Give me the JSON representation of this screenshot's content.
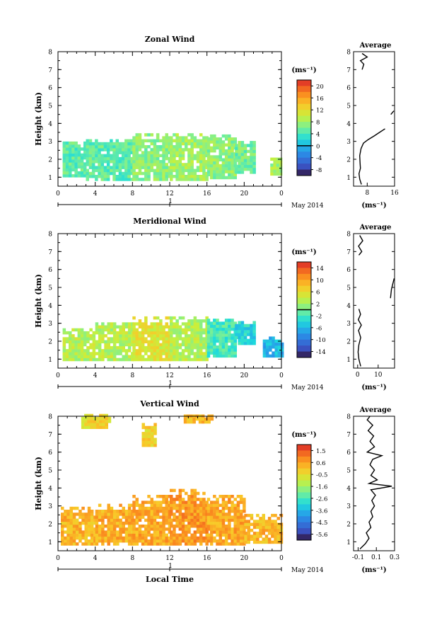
{
  "chart_data": [
    {
      "type": "heatmap",
      "title": "Zonal Wind",
      "xlabel": "",
      "ylabel": "Height (km)",
      "x_ticks": [
        "0",
        "4",
        "8",
        "12",
        "16",
        "20",
        "0"
      ],
      "y_ticks": [
        "1",
        "2",
        "3",
        "4",
        "5",
        "6",
        "7",
        "8"
      ],
      "xlim": [
        0,
        24
      ],
      "ylim": [
        0.5,
        8.0
      ],
      "date_axis": {
        "day_label": "1",
        "month_label": "May 2014"
      },
      "colorbar": {
        "unit": "(ms⁻¹)",
        "ticks": [
          "20",
          "16",
          "12",
          "8",
          "4",
          "0",
          "-4",
          "-8"
        ],
        "range": [
          -10,
          22
        ],
        "zero_line": 0
      },
      "data_regions": [
        {
          "t0": 0.5,
          "t1": 3,
          "h0": 1.0,
          "h1": 2.9,
          "v": 5
        },
        {
          "t0": 3,
          "t1": 8,
          "h0": 0.8,
          "h1": 3.1,
          "v": 5
        },
        {
          "t0": 8,
          "t1": 12,
          "h0": 0.8,
          "h1": 3.3,
          "v": 7
        },
        {
          "t0": 12,
          "t1": 16,
          "h0": 0.8,
          "h1": 3.4,
          "v": 8
        },
        {
          "t0": 16,
          "t1": 19,
          "h0": 0.9,
          "h1": 3.3,
          "v": 7
        },
        {
          "t0": 19,
          "t1": 21,
          "h0": 1.2,
          "h1": 2.9,
          "v": 6
        },
        {
          "t0": 22.8,
          "t1": 24,
          "h0": 1.1,
          "h1": 2.0,
          "v": 8
        }
      ],
      "average": {
        "title": "Average",
        "xlabel": "(ms⁻¹)",
        "x_ticks": [
          "8",
          "16"
        ],
        "xlim": [
          4,
          16
        ],
        "profile": [
          {
            "x": 6.3,
            "h": 0.6
          },
          {
            "x": 5.8,
            "h": 0.9
          },
          {
            "x": 5.6,
            "h": 1.2
          },
          {
            "x": 6.0,
            "h": 1.5
          },
          {
            "x": 5.9,
            "h": 1.8
          },
          {
            "x": 5.8,
            "h": 2.2
          },
          {
            "x": 6.2,
            "h": 2.6
          },
          {
            "x": 6.9,
            "h": 2.9
          },
          {
            "x": 8.3,
            "h": 3.1
          },
          {
            "x": 10.0,
            "h": 3.3
          },
          {
            "x": 11.6,
            "h": 3.5
          },
          {
            "x": 13.2,
            "h": 3.7
          }
        ],
        "profile_upper": [
          {
            "x": 15.8,
            "h": 4.7
          },
          {
            "x": 14.9,
            "h": 4.5
          }
        ],
        "profile_top": [
          {
            "x": 6.5,
            "h": 7.0
          },
          {
            "x": 7.0,
            "h": 7.3
          },
          {
            "x": 6.0,
            "h": 7.5
          },
          {
            "x": 8.0,
            "h": 7.7
          },
          {
            "x": 6.5,
            "h": 7.9
          }
        ]
      }
    },
    {
      "type": "heatmap",
      "title": "Meridional Wind",
      "xlabel": "",
      "ylabel": "Height (km)",
      "x_ticks": [
        "0",
        "4",
        "8",
        "12",
        "16",
        "20",
        "0"
      ],
      "y_ticks": [
        "1",
        "2",
        "3",
        "4",
        "5",
        "6",
        "7",
        "8"
      ],
      "xlim": [
        0,
        24
      ],
      "ylim": [
        0.5,
        8.0
      ],
      "date_axis": {
        "day_label": "1",
        "month_label": "May 2014"
      },
      "colorbar": {
        "unit": "(ms⁻¹)",
        "ticks": [
          "14",
          "10",
          "6",
          "2",
          "-2",
          "-6",
          "-10",
          "-14"
        ],
        "range": [
          -16,
          16
        ],
        "zero_line": 0
      },
      "data_regions": [
        {
          "t0": 0.5,
          "t1": 4,
          "h0": 0.9,
          "h1": 2.7,
          "v": 3
        },
        {
          "t0": 4,
          "t1": 8,
          "h0": 0.9,
          "h1": 3.0,
          "v": 3
        },
        {
          "t0": 8,
          "t1": 12,
          "h0": 0.9,
          "h1": 3.3,
          "v": 5
        },
        {
          "t0": 12,
          "t1": 16,
          "h0": 0.9,
          "h1": 3.3,
          "v": 3
        },
        {
          "t0": 16,
          "t1": 19,
          "h0": 1.1,
          "h1": 3.2,
          "v": -2
        },
        {
          "t0": 19,
          "t1": 21,
          "h0": 1.8,
          "h1": 3.0,
          "v": -4
        },
        {
          "t0": 22,
          "t1": 24,
          "h0": 1.1,
          "h1": 2.1,
          "v": -6
        }
      ],
      "average": {
        "title": "Average",
        "xlabel": "(ms⁻¹)",
        "x_ticks": [
          "0",
          "10"
        ],
        "xlim": [
          -2,
          18
        ],
        "profile": [
          {
            "x": 1.5,
            "h": 0.6
          },
          {
            "x": 0.6,
            "h": 1.0
          },
          {
            "x": 0.2,
            "h": 1.4
          },
          {
            "x": 0.6,
            "h": 1.8
          },
          {
            "x": 1.5,
            "h": 2.2
          },
          {
            "x": 0.4,
            "h": 2.6
          },
          {
            "x": 1.8,
            "h": 2.9
          },
          {
            "x": 0.3,
            "h": 3.2
          },
          {
            "x": 1.4,
            "h": 3.5
          },
          {
            "x": 0.6,
            "h": 3.8
          }
        ],
        "profile_upper": [
          {
            "x": 16.0,
            "h": 4.4
          },
          {
            "x": 16.5,
            "h": 4.9
          },
          {
            "x": 17.8,
            "h": 5.5
          }
        ],
        "profile_top": [
          {
            "x": 0.6,
            "h": 6.8
          },
          {
            "x": 2.0,
            "h": 7.0
          },
          {
            "x": 0.4,
            "h": 7.3
          },
          {
            "x": 2.5,
            "h": 7.6
          },
          {
            "x": 1.0,
            "h": 7.9
          }
        ]
      }
    },
    {
      "type": "heatmap",
      "title": "Vertical Wind",
      "xlabel": "Local Time",
      "ylabel": "Height (km)",
      "x_ticks": [
        "0",
        "4",
        "8",
        "12",
        "16",
        "20",
        "0"
      ],
      "y_ticks": [
        "1",
        "2",
        "3",
        "4",
        "5",
        "6",
        "7",
        "8"
      ],
      "xlim": [
        0,
        24
      ],
      "ylim": [
        0.5,
        8.0
      ],
      "date_axis": {
        "day_label": "1",
        "month_label": "May 2014"
      },
      "colorbar": {
        "unit": "(ms⁻¹)",
        "ticks": [
          "1.5",
          "0.6",
          "-0.5",
          "-1.6",
          "-2.6",
          "-3.6",
          "-4.5",
          "-5.6"
        ],
        "range": [
          -6,
          2
        ],
        "zero_line": null
      },
      "data_regions": [
        {
          "t0": 0.3,
          "t1": 4,
          "h0": 0.8,
          "h1": 2.8,
          "v": 0.2
        },
        {
          "t0": 4,
          "t1": 8,
          "h0": 0.8,
          "h1": 3.0,
          "v": 0.3
        },
        {
          "t0": 8,
          "t1": 12,
          "h0": 0.8,
          "h1": 3.6,
          "v": 0.4
        },
        {
          "t0": 12,
          "t1": 16,
          "h0": 0.8,
          "h1": 3.8,
          "v": 0.6
        },
        {
          "t0": 16,
          "t1": 20,
          "h0": 0.8,
          "h1": 3.6,
          "v": 0.4
        },
        {
          "t0": 20,
          "t1": 24,
          "h0": 0.9,
          "h1": 2.4,
          "v": 0.2
        },
        {
          "t0": 2.5,
          "t1": 5.5,
          "h0": 7.3,
          "h1": 8.0,
          "v": -0.4
        },
        {
          "t0": 9,
          "t1": 10.5,
          "h0": 6.3,
          "h1": 7.6,
          "v": -0.3
        },
        {
          "t0": 13.5,
          "t1": 16.5,
          "h0": 7.6,
          "h1": 8.0,
          "v": 0.1
        }
      ],
      "average": {
        "title": "Average",
        "xlabel": "(ms⁻¹)",
        "x_ticks": [
          "-0.1",
          "0.1",
          "0.3"
        ],
        "xlim": [
          -0.15,
          0.3
        ],
        "profile": [
          {
            "x": -0.08,
            "h": 0.6
          },
          {
            "x": -0.02,
            "h": 0.9
          },
          {
            "x": 0.02,
            "h": 1.2
          },
          {
            "x": -0.01,
            "h": 1.5
          },
          {
            "x": 0.04,
            "h": 1.8
          },
          {
            "x": 0.02,
            "h": 2.1
          },
          {
            "x": 0.06,
            "h": 2.4
          },
          {
            "x": 0.04,
            "h": 2.7
          },
          {
            "x": 0.08,
            "h": 3.0
          },
          {
            "x": 0.05,
            "h": 3.3
          },
          {
            "x": 0.09,
            "h": 3.6
          },
          {
            "x": 0.04,
            "h": 3.9
          },
          {
            "x": 0.27,
            "h": 4.1
          },
          {
            "x": 0.02,
            "h": 4.25
          },
          {
            "x": 0.11,
            "h": 4.45
          },
          {
            "x": 0.04,
            "h": 4.7
          },
          {
            "x": 0.08,
            "h": 5.0
          },
          {
            "x": 0.03,
            "h": 5.3
          },
          {
            "x": 0.06,
            "h": 5.6
          },
          {
            "x": 0.16,
            "h": 5.8
          },
          {
            "x": 0.0,
            "h": 6.0
          },
          {
            "x": 0.08,
            "h": 6.3
          },
          {
            "x": 0.03,
            "h": 6.6
          },
          {
            "x": 0.07,
            "h": 6.9
          },
          {
            "x": 0.01,
            "h": 7.2
          },
          {
            "x": 0.06,
            "h": 7.5
          },
          {
            "x": 0.0,
            "h": 7.8
          },
          {
            "x": 0.03,
            "h": 8.0
          }
        ]
      }
    }
  ]
}
